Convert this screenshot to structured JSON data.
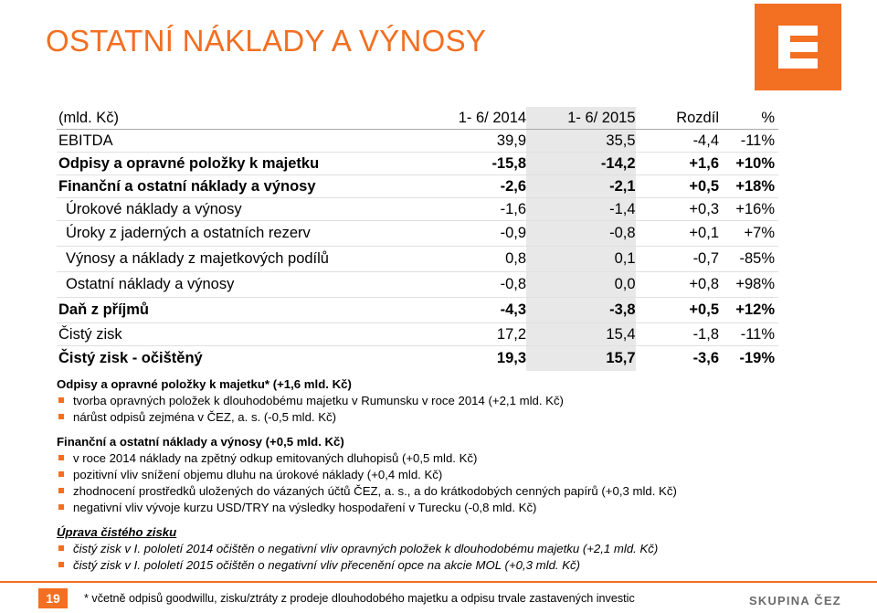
{
  "slide": {
    "title": "OSTATNÍ NÁKLADY A VÝNOSY",
    "accent_color": "#f36f21",
    "logo_icon": "cez-e-logo-icon"
  },
  "table": {
    "headers": [
      "(mld. Kč)",
      "1- 6/ 2014",
      "1- 6/ 2015",
      "Rozdíl",
      "%"
    ],
    "rows": [
      {
        "label": "EBITDA",
        "v2014": "39,9",
        "v2015": "35,5",
        "diff": "-4,4",
        "pct": "-11%"
      },
      {
        "label": "Odpisy a opravné položky k majetku",
        "v2014": "-15,8",
        "v2015": "-14,2",
        "diff": "+1,6",
        "pct": "+10%"
      },
      {
        "label": "Finanční a ostatní náklady a výnosy",
        "v2014": "-2,6",
        "v2015": "-2,1",
        "diff": "+0,5",
        "pct": "+18%"
      },
      {
        "label": "Úrokové náklady a výnosy",
        "v2014": "-1,6",
        "v2015": "-1,4",
        "diff": "+0,3",
        "pct": "+16%"
      },
      {
        "label": "Úroky z jaderných a ostatních rezerv",
        "v2014": "-0,9",
        "v2015": "-0,8",
        "diff": "+0,1",
        "pct": "+7%"
      },
      {
        "label": "Výnosy a náklady z majetkových podílů",
        "v2014": "0,8",
        "v2015": "0,1",
        "diff": "-0,7",
        "pct": "-85%"
      },
      {
        "label": "Ostatní náklady a výnosy",
        "v2014": "-0,8",
        "v2015": "0,0",
        "diff": "+0,8",
        "pct": "+98%"
      },
      {
        "label": "Daň z příjmů",
        "v2014": "-4,3",
        "v2015": "-3,8",
        "diff": "+0,5",
        "pct": "+12%"
      },
      {
        "label": "Čistý zisk",
        "v2014": "17,2",
        "v2015": "15,4",
        "diff": "-1,8",
        "pct": "-11%"
      },
      {
        "label": "Čistý zisk - očištěný",
        "v2014": "19,3",
        "v2015": "15,7",
        "diff": "-3,6",
        "pct": "-19%"
      }
    ]
  },
  "notes": {
    "section1_title": "Odpisy a opravné položky k majetku* (+1,6 mld. Kč)",
    "section1_items": [
      "tvorba opravných položek k dlouhodobému majetku v Rumunsku v roce 2014 (+2,1 mld. Kč)",
      "nárůst odpisů zejména v ČEZ, a. s. (-0,5 mld. Kč)"
    ],
    "section2_title": "Finanční a ostatní náklady a výnosy (+0,5 mld. Kč)",
    "section2_items": [
      "v roce 2014 náklady na zpětný odkup emitovaných dluhopisů (+0,5 mld. Kč)",
      "pozitivní vliv snížení objemu dluhu na úrokové náklady (+0,4 mld. Kč)",
      "zhodnocení prostředků uložených do vázaných účtů ČEZ, a. s., a do krátkodobých cenných papírů (+0,3 mld. Kč)",
      "negativní vliv vývoje kurzu USD/TRY na výsledky hospodaření v Turecku (-0,8 mld. Kč)"
    ],
    "section3_title": "Úprava čistého zisku",
    "section3_items": [
      "čistý zisk v I. pololetí 2014 očištěn o negativní vliv opravných položek k dlouhodobému majetku (+2,1 mld. Kč)",
      "čistý zisk v I. pololetí 2015 očištěn o negativní vliv přecenění opce na akcie MOL (+0,3 mld. Kč)"
    ]
  },
  "footer": {
    "page_number": "19",
    "footnote": "* včetně odpisů goodwillu, zisku/ztráty z prodeje dlouhodobého majetku a odpisu trvale zastavených investic",
    "brand": "SKUPINA ČEZ"
  }
}
